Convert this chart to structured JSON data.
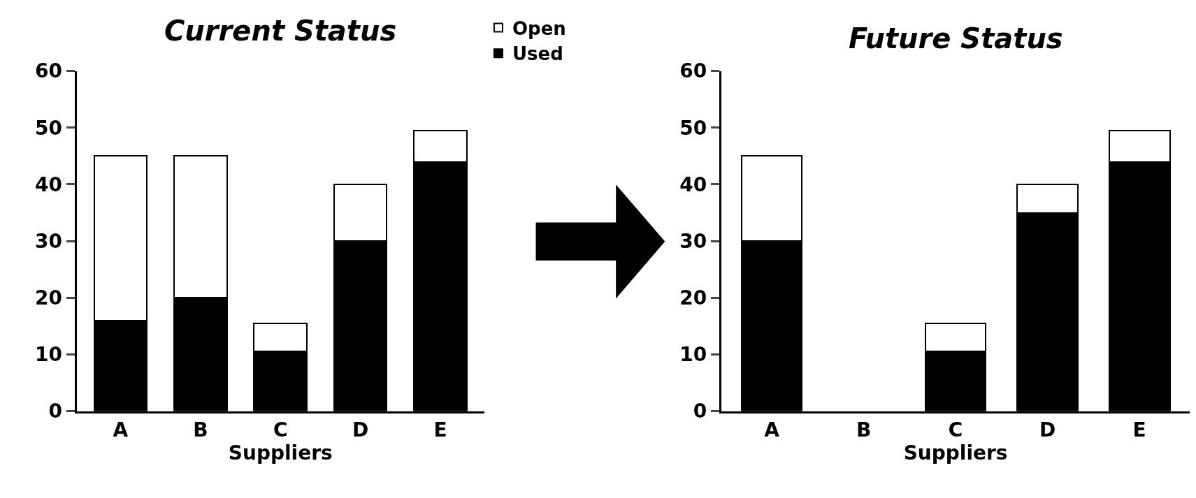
{
  "chart_data": [
    {
      "type": "bar",
      "title": "Current Status",
      "xlabel": "Suppliers",
      "categories": [
        "A",
        "B",
        "C",
        "D",
        "E"
      ],
      "stacked": true,
      "ylim": [
        0,
        60
      ],
      "yticks": [
        0,
        10,
        20,
        30,
        40,
        50,
        60
      ],
      "legend": "top right",
      "series": [
        {
          "name": "Used",
          "color": "#000000",
          "values": [
            16,
            20,
            10.5,
            30,
            44
          ]
        },
        {
          "name": "Open",
          "color": "#ffffff",
          "values": [
            29,
            25,
            5,
            10,
            5.5
          ]
        }
      ]
    },
    {
      "type": "bar",
      "title": "Future Status",
      "xlabel": "Suppliers",
      "categories": [
        "A",
        "B",
        "C",
        "D",
        "E"
      ],
      "stacked": true,
      "ylim": [
        0,
        60
      ],
      "yticks": [
        0,
        10,
        20,
        30,
        40,
        50,
        60
      ],
      "series": [
        {
          "color": "#000000",
          "values": [
            30,
            null,
            10.5,
            35,
            44
          ]
        },
        {
          "color": "#ffffff",
          "values": [
            15,
            null,
            5,
            5,
            5.5
          ]
        }
      ]
    }
  ]
}
